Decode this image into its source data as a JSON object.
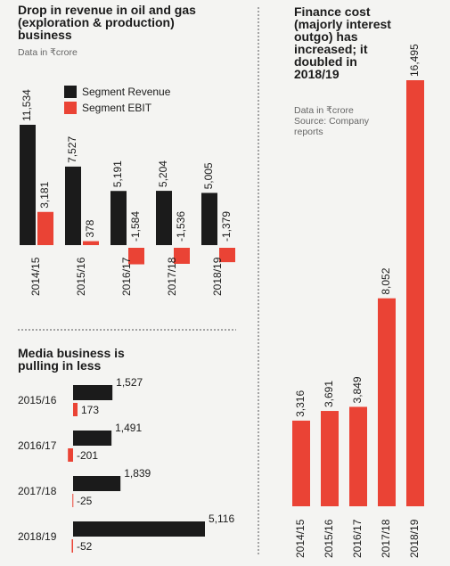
{
  "chart_data": [
    {
      "type": "bar",
      "title": "Drop in revenue in oil and gas (exploration & production) business",
      "subtitle": "Data in ₹crore",
      "categories": [
        "2014/15",
        "2015/16",
        "2016/17",
        "2017/18",
        "2018/19"
      ],
      "series": [
        {
          "name": "Segment Revenue",
          "color": "#1b1b1b",
          "values": [
            11534,
            7527,
            5191,
            5204,
            5005
          ],
          "value_labels": [
            "11,534",
            "7,527",
            "5,191",
            "5,204",
            "5,005"
          ]
        },
        {
          "name": "Segment EBIT",
          "color": "#ea4335",
          "values": [
            3181,
            378,
            -1584,
            -1536,
            -1379
          ],
          "value_labels": [
            "3,181",
            "378",
            "-1,584",
            "-1,536",
            "-1,379"
          ]
        }
      ]
    },
    {
      "type": "hbar",
      "title": "Media business is pulling in less",
      "categories": [
        "2015/16",
        "2016/17",
        "2017/18",
        "2018/19"
      ],
      "series": [
        {
          "color": "#1b1b1b",
          "values": [
            1527,
            1491,
            1839,
            5116
          ],
          "value_labels": [
            "1,527",
            "1,491",
            "1,839",
            "5,116"
          ]
        },
        {
          "color": "#ea4335",
          "values": [
            173,
            -201,
            -25,
            -52
          ]
        }
      ]
    },
    {
      "type": "column",
      "title": "Finance cost (majorly interest outgo) has increased; it doubled in 2018/19",
      "subtitle": "Data in ₹crore",
      "source": "Source: Company reports",
      "categories": [
        "2014/15",
        "2015/16",
        "2016/17",
        "2017/18",
        "2018/19"
      ],
      "color": "#ea4335",
      "values": [
        3316,
        3691,
        3849,
        8052,
        16495
      ],
      "value_labels": [
        "3,316",
        "3,691",
        "3,849",
        "8,052",
        "16,495"
      ]
    }
  ]
}
